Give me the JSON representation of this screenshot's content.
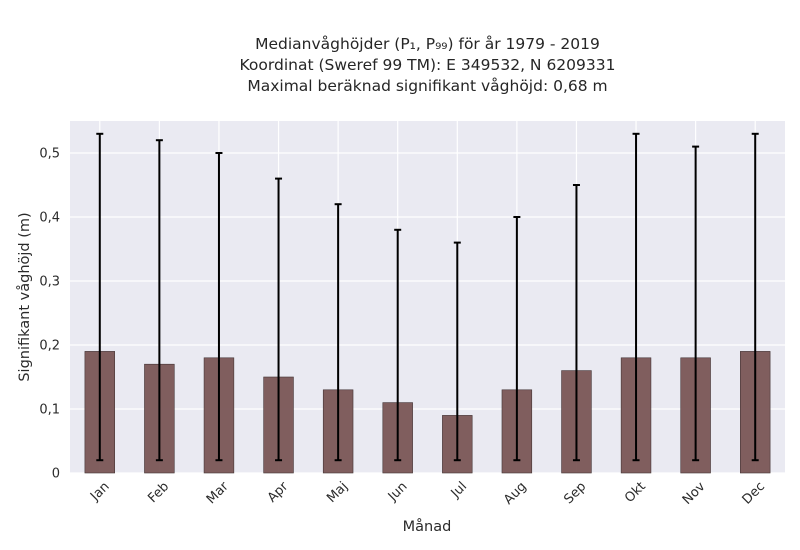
{
  "title_lines": [
    "Medianvåghöjder (P₁, P₉₉) för år 1979 - 2019",
    "Koordinat (Sweref 99 TM): E 349532, N 6209331",
    "Maximal beräknad signifikant våghöjd: 0,68 m"
  ],
  "chart_data": {
    "type": "bar",
    "title": "Medianvåghöjder (P₁, P₉₉) för år 1979 - 2019",
    "xlabel": "Månad",
    "ylabel": "Signifikant våghöjd (m)",
    "categories": [
      "Jan",
      "Feb",
      "Mar",
      "Apr",
      "Maj",
      "Jun",
      "Jul",
      "Aug",
      "Sep",
      "Okt",
      "Nov",
      "Dec"
    ],
    "values": [
      0.19,
      0.17,
      0.18,
      0.15,
      0.13,
      0.11,
      0.09,
      0.13,
      0.16,
      0.18,
      0.18,
      0.19
    ],
    "err_low": [
      0.02,
      0.02,
      0.02,
      0.02,
      0.02,
      0.02,
      0.02,
      0.02,
      0.02,
      0.02,
      0.02,
      0.02
    ],
    "err_high": [
      0.53,
      0.52,
      0.5,
      0.46,
      0.42,
      0.38,
      0.36,
      0.4,
      0.45,
      0.53,
      0.51,
      0.53
    ],
    "ylim": [
      0,
      0.55
    ],
    "yticks": [
      0,
      0.1,
      0.2,
      0.3,
      0.4,
      0.5
    ],
    "ytick_labels": [
      "0",
      "0,1",
      "0,2",
      "0,3",
      "0,4",
      "0,5"
    ],
    "grid": true,
    "bar_color": "#7b5757",
    "error_color": "#000000",
    "background": "#eaeaf2"
  }
}
